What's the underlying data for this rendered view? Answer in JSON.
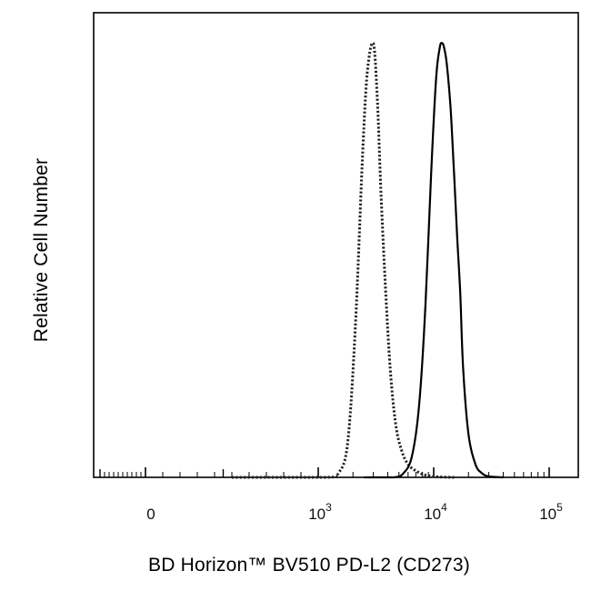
{
  "chart_data": {
    "type": "area",
    "title": "",
    "xlabel": "BD Horizon™ BV510 PD-L2 (CD273)",
    "ylabel": "Relative Cell Number",
    "x_scale": "biexponential",
    "xlim": [
      -1000,
      250000
    ],
    "ylim": [
      0,
      1.07
    ],
    "grid": false,
    "legend": "none",
    "x_ticks": [
      {
        "label": "0",
        "value": 0
      },
      {
        "label": "10",
        "exp": "3",
        "value": 1000
      },
      {
        "label": "10",
        "exp": "4",
        "value": 10000
      },
      {
        "label": "10",
        "exp": "5",
        "value": 100000
      }
    ],
    "series": [
      {
        "style": "dotted",
        "color": "#222222",
        "x": [
          500,
          1200,
          1500,
          1800,
          2100,
          2400,
          2600,
          2800,
          2950,
          3050,
          3150,
          3300,
          3500,
          3800,
          4200,
          4700,
          5300,
          6000,
          7000,
          8500,
          11000,
          15000
        ],
        "y": [
          0,
          0,
          0.01,
          0.08,
          0.35,
          0.72,
          0.9,
          0.98,
          1.0,
          0.99,
          0.94,
          0.83,
          0.65,
          0.45,
          0.25,
          0.12,
          0.06,
          0.03,
          0.015,
          0.005,
          0.001,
          0
        ]
      },
      {
        "style": "solid",
        "color": "#000000",
        "x": [
          2500,
          4500,
          5500,
          6500,
          7500,
          8500,
          9500,
          10500,
          11300,
          11800,
          12300,
          13000,
          14000,
          15000,
          16000,
          17000,
          18000,
          20000,
          23000,
          26000,
          30000,
          40000
        ],
        "y": [
          0,
          0,
          0.01,
          0.05,
          0.17,
          0.4,
          0.7,
          0.92,
          0.99,
          1.0,
          0.99,
          0.95,
          0.85,
          0.7,
          0.55,
          0.42,
          0.25,
          0.1,
          0.03,
          0.01,
          0.002,
          0
        ]
      }
    ]
  }
}
